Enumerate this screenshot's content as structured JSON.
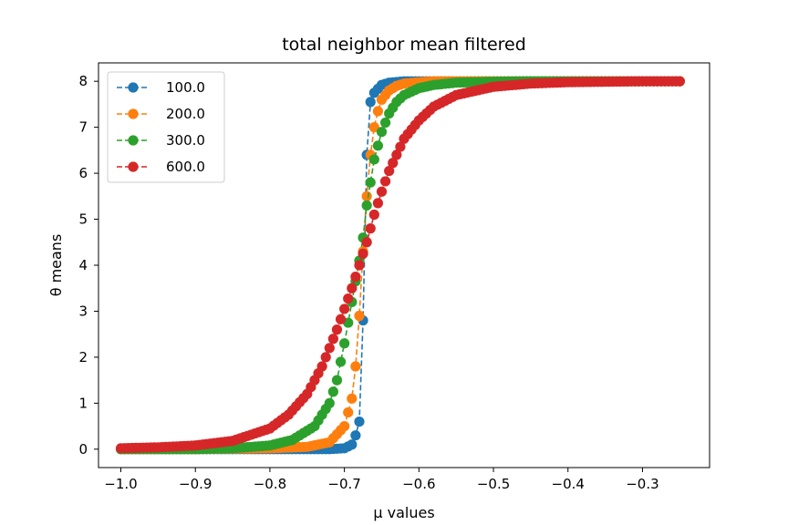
{
  "chart_data": {
    "type": "line",
    "title": "total neighbor mean filtered",
    "xlabel": "μ values",
    "ylabel": "θ means",
    "xlim": [
      -1.03,
      -0.21
    ],
    "ylim": [
      -0.4,
      8.4
    ],
    "xticks": [
      -1.0,
      -0.9,
      -0.8,
      -0.7,
      -0.6,
      -0.5,
      -0.4,
      -0.3
    ],
    "xtick_labels": [
      "−1.0",
      "−0.9",
      "−0.8",
      "−0.7",
      "−0.6",
      "−0.5",
      "−0.4",
      "−0.3"
    ],
    "yticks": [
      0,
      1,
      2,
      3,
      4,
      5,
      6,
      7,
      8
    ],
    "ytick_labels": [
      "0",
      "1",
      "2",
      "3",
      "4",
      "5",
      "6",
      "7",
      "8"
    ],
    "grid": false,
    "legend_position": "upper-left",
    "marker": "circle",
    "linestyle": "dashed",
    "x_range": [
      -1.0,
      -0.25
    ],
    "x_step": 0.005,
    "series": [
      {
        "name": "100.0",
        "color": "#1f77b4",
        "x": [
          -1.0,
          -0.9,
          -0.8,
          -0.72,
          -0.7,
          -0.69,
          -0.685,
          -0.68,
          -0.678,
          -0.676,
          -0.675,
          -0.674,
          -0.672,
          -0.67,
          -0.668,
          -0.665,
          -0.66,
          -0.65,
          -0.64,
          -0.62,
          -0.6,
          -0.5,
          -0.4,
          -0.3,
          -0.25
        ],
        "y": [
          0.0,
          0.0,
          0.0,
          0.0,
          0.02,
          0.1,
          0.3,
          0.6,
          1.1,
          2.0,
          2.8,
          3.6,
          4.8,
          6.4,
          7.2,
          7.55,
          7.75,
          7.92,
          7.97,
          8.0,
          8.0,
          8.0,
          8.0,
          8.0,
          8.0
        ]
      },
      {
        "name": "200.0",
        "color": "#ff7f0e",
        "x": [
          -1.0,
          -0.9,
          -0.8,
          -0.75,
          -0.72,
          -0.7,
          -0.69,
          -0.685,
          -0.68,
          -0.675,
          -0.67,
          -0.665,
          -0.66,
          -0.655,
          -0.65,
          -0.64,
          -0.63,
          -0.62,
          -0.6,
          -0.58,
          -0.55,
          -0.5,
          -0.4,
          -0.3,
          -0.25
        ],
        "y": [
          0.0,
          0.0,
          0.02,
          0.05,
          0.15,
          0.5,
          1.1,
          1.8,
          2.9,
          4.3,
          5.5,
          6.4,
          7.0,
          7.35,
          7.6,
          7.8,
          7.9,
          7.95,
          7.98,
          8.0,
          8.0,
          8.0,
          8.0,
          8.0,
          8.0
        ]
      },
      {
        "name": "300.0",
        "color": "#2ca02c",
        "x": [
          -1.0,
          -0.9,
          -0.85,
          -0.8,
          -0.77,
          -0.74,
          -0.72,
          -0.71,
          -0.7,
          -0.69,
          -0.68,
          -0.675,
          -0.67,
          -0.66,
          -0.65,
          -0.64,
          -0.63,
          -0.62,
          -0.6,
          -0.58,
          -0.55,
          -0.5,
          -0.45,
          -0.4,
          -0.3,
          -0.25
        ],
        "y": [
          0.0,
          0.0,
          0.02,
          0.08,
          0.2,
          0.5,
          1.0,
          1.5,
          2.3,
          3.2,
          4.1,
          4.6,
          5.3,
          6.3,
          6.9,
          7.3,
          7.55,
          7.7,
          7.85,
          7.92,
          7.97,
          7.99,
          8.0,
          8.0,
          8.0,
          8.0
        ]
      },
      {
        "name": "600.0",
        "color": "#d62728",
        "x": [
          -1.0,
          -0.95,
          -0.9,
          -0.85,
          -0.8,
          -0.775,
          -0.75,
          -0.73,
          -0.71,
          -0.7,
          -0.69,
          -0.68,
          -0.67,
          -0.66,
          -0.65,
          -0.64,
          -0.63,
          -0.62,
          -0.6,
          -0.58,
          -0.55,
          -0.5,
          -0.45,
          -0.4,
          -0.35,
          -0.3,
          -0.25
        ],
        "y": [
          0.02,
          0.04,
          0.08,
          0.18,
          0.45,
          0.75,
          1.2,
          1.8,
          2.6,
          3.05,
          3.5,
          4.0,
          4.5,
          5.1,
          5.6,
          6.05,
          6.4,
          6.75,
          7.15,
          7.45,
          7.7,
          7.88,
          7.95,
          7.98,
          7.99,
          8.0,
          8.0
        ]
      }
    ]
  }
}
